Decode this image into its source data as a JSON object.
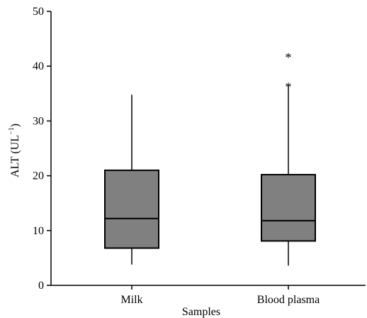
{
  "chart_data": {
    "type": "box",
    "title": "",
    "xlabel": "Samples",
    "ylabel_main": "ALT (UL",
    "ylabel_sup": "−1",
    "ylabel_close": ")",
    "ylim": [
      0,
      50
    ],
    "yticks": [
      0,
      10,
      20,
      30,
      40,
      50
    ],
    "categories": [
      "Milk",
      "Blood plasma"
    ],
    "boxes": [
      {
        "category": "Milk",
        "whisker_low": 3.8,
        "q1": 6.8,
        "median": 12.2,
        "q3": 21.0,
        "whisker_high": 34.8,
        "outliers": []
      },
      {
        "category": "Blood plasma",
        "whisker_low": 3.6,
        "q1": 8.1,
        "median": 11.8,
        "q3": 20.2,
        "whisker_high": 36.6,
        "outliers": [
          36.6,
          42.0
        ]
      }
    ],
    "outlier_symbol": "*",
    "grid": false
  },
  "colors": {
    "box_fill": "#808080",
    "stroke": "#000000"
  }
}
